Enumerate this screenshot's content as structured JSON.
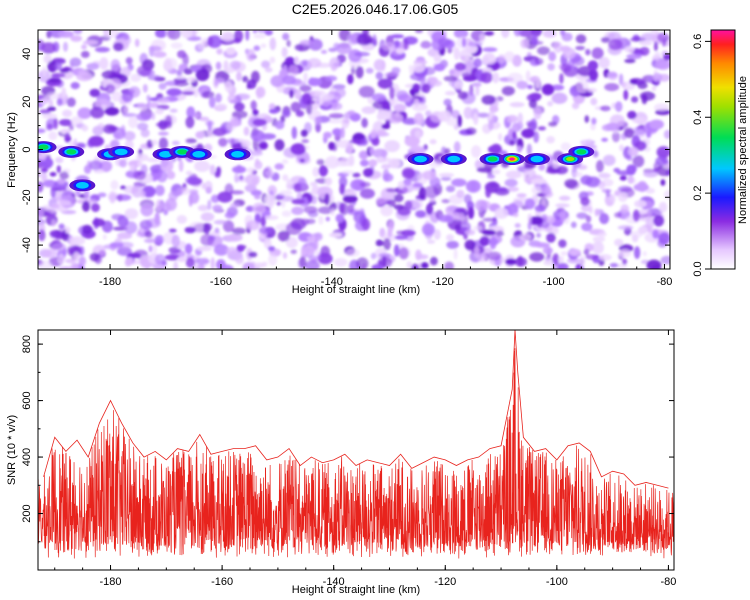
{
  "title": "C2E5.2026.046.17.06.G05",
  "chart_data": [
    {
      "type": "heatmap",
      "xlabel": "Height of straight line (km)",
      "ylabel": "Frequency (Hz)",
      "xlim": [
        -193,
        -79
      ],
      "ylim": [
        -50,
        50
      ],
      "xticks": [
        "-180",
        "-160",
        "-140",
        "-120",
        "-100",
        "-80"
      ],
      "yticks": [
        "40",
        "20",
        "0",
        "-20",
        "-40"
      ],
      "colorbar": {
        "label": "Normalized spectral amplitude",
        "range": [
          0,
          0.63
        ],
        "ticks": [
          "0.0",
          "0.2",
          "0.4",
          "0.6"
        ]
      },
      "grid": false,
      "hotspots": [
        {
          "height_km": -192,
          "freq_hz": 1,
          "amp": 0.28
        },
        {
          "height_km": -187,
          "freq_hz": -1,
          "amp": 0.3
        },
        {
          "height_km": -185,
          "freq_hz": -15,
          "amp": 0.22
        },
        {
          "height_km": -180,
          "freq_hz": -2,
          "amp": 0.24
        },
        {
          "height_km": -178,
          "freq_hz": -1,
          "amp": 0.26
        },
        {
          "height_km": -170,
          "freq_hz": -2,
          "amp": 0.25
        },
        {
          "height_km": -167,
          "freq_hz": -1,
          "amp": 0.34
        },
        {
          "height_km": -164,
          "freq_hz": -2,
          "amp": 0.24
        },
        {
          "height_km": -157,
          "freq_hz": -2,
          "amp": 0.2
        },
        {
          "height_km": -124,
          "freq_hz": -4,
          "amp": 0.2
        },
        {
          "height_km": -118,
          "freq_hz": -4,
          "amp": 0.24
        },
        {
          "height_km": -111,
          "freq_hz": -4,
          "amp": 0.3
        },
        {
          "height_km": -107.5,
          "freq_hz": -4,
          "amp": 0.63
        },
        {
          "height_km": -103,
          "freq_hz": -4,
          "amp": 0.22
        },
        {
          "height_km": -97,
          "freq_hz": -4,
          "amp": 0.42
        },
        {
          "height_km": -95,
          "freq_hz": -1,
          "amp": 0.3
        }
      ]
    },
    {
      "type": "line",
      "xlabel": "Height of straight line (km)",
      "ylabel": "SNR (10 * v/v)",
      "xlim": [
        -193,
        -79
      ],
      "ylim": [
        0,
        850
      ],
      "xticks": [
        "-180",
        "-160",
        "-140",
        "-120",
        "-100",
        "-80"
      ],
      "yticks": [
        "800",
        "600",
        "400",
        "200"
      ],
      "grid": false,
      "series": [
        {
          "color": "#e8231d",
          "x": [
            -192,
            -190,
            -188,
            -186,
            -184,
            -182,
            -180,
            -179,
            -178,
            -176,
            -174,
            -172,
            -170,
            -168,
            -166,
            -164,
            -162,
            -160,
            -158,
            -156,
            -154,
            -152,
            -150,
            -148,
            -146,
            -144,
            -142,
            -140,
            -138,
            -136,
            -134,
            -132,
            -130,
            -128,
            -126,
            -124,
            -122,
            -120,
            -118,
            -116,
            -114,
            -112,
            -110,
            -108,
            -107.5,
            -107,
            -106,
            -104,
            -102,
            -100,
            -98,
            -96,
            -94,
            -92,
            -90,
            -88,
            -86,
            -84,
            -82,
            -80
          ],
          "y": [
            330,
            470,
            420,
            460,
            400,
            520,
            600,
            560,
            520,
            450,
            400,
            420,
            390,
            430,
            420,
            480,
            410,
            420,
            430,
            430,
            440,
            390,
            400,
            430,
            370,
            400,
            380,
            390,
            410,
            370,
            390,
            380,
            370,
            410,
            360,
            380,
            400,
            390,
            370,
            390,
            400,
            430,
            440,
            640,
            850,
            700,
            470,
            420,
            430,
            390,
            440,
            450,
            420,
            330,
            350,
            340,
            300,
            310,
            300,
            290
          ]
        }
      ]
    }
  ]
}
